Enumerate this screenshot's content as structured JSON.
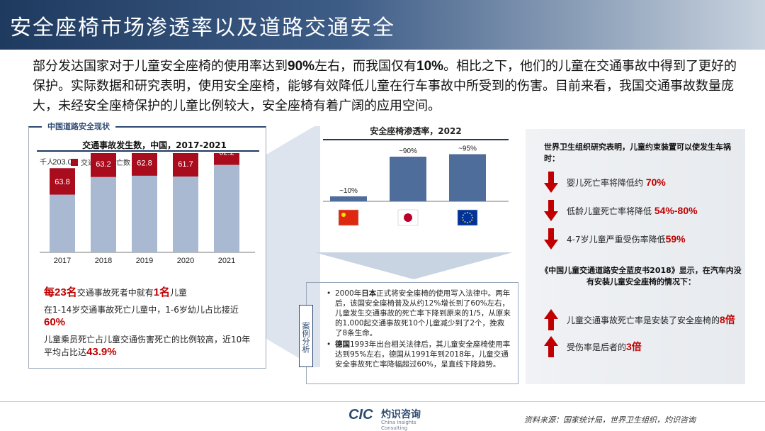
{
  "title": "安全座椅市场渗透率以及道路交通安全",
  "intro": {
    "p1": "部分发达国家对于儿童安全座椅的使用率达到",
    "v1": "90%",
    "p2": "左右，而我国仅有",
    "v2": "10%",
    "p3": "。相比之下，他们的儿童在交通事故中得到了更好的保护。实际数据和研究表明，使用安全座椅，能够有效降低儿童在行车事故中所受到的伤害。目前来看，我国交通事故数量庞大，未经安全座椅保护的儿童比例较大，安全座椅有着广阔的应用空间。"
  },
  "left_panel": {
    "tag": "中国道路安全现状",
    "stats": [
      {
        "pre": "",
        "v1": "每23名",
        "mid": "交通事故死者中就有",
        "v2": "1名",
        "post": "儿童"
      },
      {
        "pre": "在1-14岁交通事故死亡儿童中，1-6岁幼儿占比接近",
        "v1": "60%",
        "mid": "",
        "v2": "",
        "post": ""
      },
      {
        "pre": "儿童乘员死亡占儿童交通伤害死亡的比例较高，近10年平均占比达",
        "v1": "43.9%",
        "mid": "",
        "v2": "",
        "post": ""
      }
    ]
  },
  "middle": {
    "case_label": "案例分析",
    "case_items": [
      {
        "a": "2000年",
        "b": "日本",
        "c": "正式将安全座椅的使用写入法律中。两年后，该国安全座椅普及从约12%增长到了60%左右，儿童发生交通事故的死亡率下降到原来的1/5，从原来的1,000起交通事故死10个儿童减少到了2个，挽救了8条生命。"
      },
      {
        "a": "",
        "b": "德国",
        "c": "1993年出台相关法律后，其儿童安全座椅使用率达到95%左右，德国从1991年到2018年，儿童交通安全事故死亡率降幅超过60%，呈直线下降趋势。"
      }
    ]
  },
  "right_panel": {
    "who_title": "世界卫生组织研究表明，儿童约束装置可以使发生车祸时：",
    "who_items": [
      {
        "text": "婴儿死亡率将降低约",
        "value": "70%"
      },
      {
        "text": "低龄儿童死亡率将降低",
        "value": "54%-80%"
      },
      {
        "text": "4-7岁儿童严重受伤率降低",
        "value": "59%"
      }
    ],
    "book_title": "《中国儿童交通道路安全蓝皮书2018》显示，在汽车内没有安装儿童安全座椅的情况下：",
    "book_items": [
      {
        "text": "儿童交通事故死亡率是安装了安全座椅的",
        "value": "8倍"
      },
      {
        "text": "受伤率是后者的",
        "value": "3倍"
      }
    ],
    "colors": {
      "arrow": "#c00000"
    }
  },
  "footer": {
    "logo_cic": "CIC",
    "logo_cn": "灼识咨询",
    "logo_en": "China Insights Consulting",
    "source": "资料来源：国家统计局，世界卫生组织，灼识咨询"
  },
  "chart_data": [
    {
      "type": "bar",
      "title": "交通事故发生数，中国，2017-2021",
      "unit_label": "千人",
      "categories": [
        "2017",
        "2018",
        "2019",
        "2020",
        "2021"
      ],
      "series": [
        {
          "name": "",
          "values": [
            139.2,
            181.7,
            184.8,
            182.9,
            210.9
          ]
        },
        {
          "name": "交通事故死亡数",
          "values": [
            63.8,
            63.2,
            62.8,
            61.7,
            62.2
          ]
        }
      ],
      "totals": [
        203.0,
        244.9,
        247.6,
        244.6,
        273.1
      ],
      "stacked": true,
      "ylim": [
        0,
        300
      ],
      "legend": "top-left",
      "colors": {
        "base": "#a9b9d1",
        "deaths": "#a80c1d"
      }
    },
    {
      "type": "bar",
      "title": "安全座椅渗透率，2022",
      "categories": [
        "中国",
        "日本",
        "欧盟"
      ],
      "values": [
        10,
        90,
        95
      ],
      "labels": [
        "~10%",
        "~90%",
        "~95%"
      ],
      "ylim": [
        0,
        100
      ],
      "colors": {
        "bar": "#4f6d9a"
      }
    }
  ]
}
